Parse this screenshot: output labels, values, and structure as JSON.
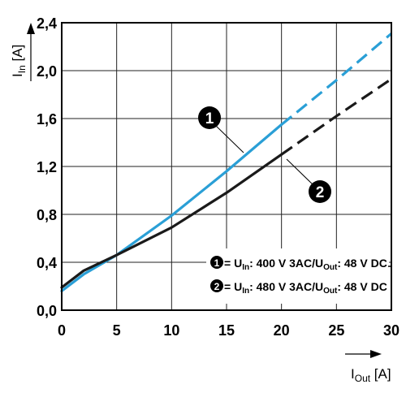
{
  "chart_data": {
    "type": "line",
    "xlabel": {
      "main": "I",
      "sub": "Out",
      "unit": " [A]"
    },
    "ylabel": {
      "main": "I",
      "sub": "In",
      "unit": " [A]"
    },
    "xlim": [
      0,
      30
    ],
    "ylim": [
      0,
      2.4
    ],
    "x_ticks": [
      "0",
      "5",
      "10",
      "15",
      "20",
      "25",
      "30"
    ],
    "y_ticks": [
      "0,0",
      "0,4",
      "0,8",
      "1,2",
      "1,6",
      "2,0",
      "2,4"
    ],
    "grid": true,
    "legend_position": "bottom-right",
    "series": [
      {
        "id": "1",
        "label": {
          "p1": " = U",
          "s1": "In",
          "p2": ": 400 V 3AC/U",
          "s2": "Out",
          "p3": ": 48 V DC"
        },
        "color": "#2a9fd6",
        "solid_until_x": 20,
        "points": [
          [
            0,
            0.16
          ],
          [
            2,
            0.3
          ],
          [
            5,
            0.46
          ],
          [
            10,
            0.79
          ],
          [
            15,
            1.16
          ],
          [
            20,
            1.55
          ],
          [
            25,
            1.92
          ],
          [
            30,
            2.31
          ]
        ]
      },
      {
        "id": "2",
        "label": {
          "p1": " = U",
          "s1": "In",
          "p2": ": 480 V 3AC/U",
          "s2": "Out",
          "p3": ": 48 V DC"
        },
        "color": "#1a1a1a",
        "solid_until_x": 20,
        "points": [
          [
            0,
            0.19
          ],
          [
            2,
            0.33
          ],
          [
            5,
            0.46
          ],
          [
            10,
            0.69
          ],
          [
            15,
            0.98
          ],
          [
            20,
            1.3
          ],
          [
            25,
            1.62
          ],
          [
            30,
            1.93
          ]
        ]
      }
    ],
    "callouts": [
      "1",
      "2"
    ]
  }
}
